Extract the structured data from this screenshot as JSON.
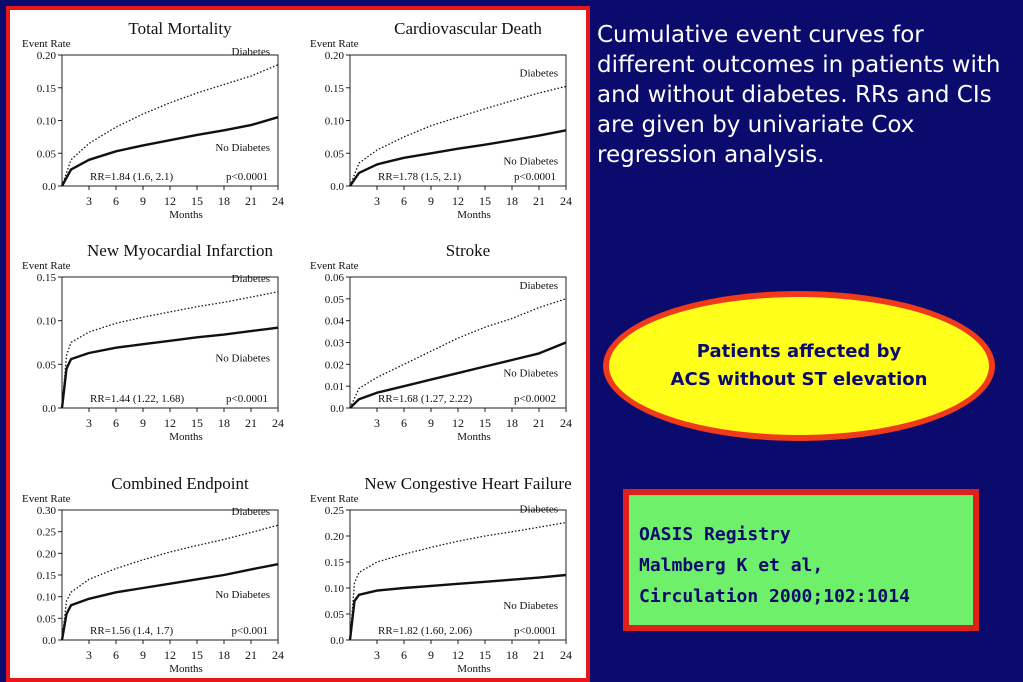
{
  "caption": "Cumulative event curves for different outcomes in patients with and without diabetes. RRs and CIs are given by univariate Cox regression analysis.",
  "callout": {
    "line1": "Patients affected by",
    "line2": "ACS without ST elevation"
  },
  "reference": {
    "line1": "OASIS Registry",
    "line2": "Malmberg K et al,",
    "line3": "Circulation 2000;102:1014"
  },
  "colors": {
    "background": "#0b0b6e",
    "panel_border": "#e8161a",
    "callout_fill": "#ffff1a",
    "callout_border": "#f03a1a",
    "reference_fill": "#6ef06a",
    "reference_border": "#e0201a"
  },
  "chart_data": [
    {
      "type": "line",
      "title": "Total Mortality",
      "ylabel": "Event Rate",
      "xlabel": "Months",
      "x_ticks": [
        3,
        6,
        9,
        12,
        15,
        18,
        21,
        24
      ],
      "y_ticks": [
        "0.0",
        "0.05",
        "0.10",
        "0.15",
        "0.20"
      ],
      "ylim": [
        0,
        0.2
      ],
      "xlim": [
        0,
        24
      ],
      "series": [
        {
          "name": "Diabetes",
          "style": "dotted",
          "x": [
            0,
            1,
            3,
            6,
            9,
            12,
            15,
            18,
            21,
            24
          ],
          "y": [
            0,
            0.04,
            0.065,
            0.09,
            0.11,
            0.127,
            0.142,
            0.155,
            0.168,
            0.185
          ]
        },
        {
          "name": "No Diabetes",
          "style": "solid",
          "x": [
            0,
            1,
            3,
            6,
            9,
            12,
            15,
            18,
            21,
            24
          ],
          "y": [
            0,
            0.025,
            0.04,
            0.053,
            0.062,
            0.07,
            0.078,
            0.085,
            0.093,
            0.105
          ]
        }
      ],
      "annotation": {
        "rr": "RR=1.84 (1.6, 2.1)",
        "p": "p<0.0001"
      }
    },
    {
      "type": "line",
      "title": "Cardiovascular Death",
      "ylabel": "Event Rate",
      "xlabel": "Months",
      "x_ticks": [
        3,
        6,
        9,
        12,
        15,
        18,
        21,
        24
      ],
      "y_ticks": [
        "0.0",
        "0.05",
        "0.10",
        "0.15",
        "0.20"
      ],
      "ylim": [
        0,
        0.2
      ],
      "xlim": [
        0,
        24
      ],
      "series": [
        {
          "name": "Diabetes",
          "style": "dotted",
          "x": [
            0,
            1,
            3,
            6,
            9,
            12,
            15,
            18,
            21,
            24
          ],
          "y": [
            0,
            0.035,
            0.055,
            0.075,
            0.092,
            0.105,
            0.118,
            0.13,
            0.142,
            0.152
          ]
        },
        {
          "name": "No Diabetes",
          "style": "solid",
          "x": [
            0,
            1,
            3,
            6,
            9,
            12,
            15,
            18,
            21,
            24
          ],
          "y": [
            0,
            0.02,
            0.033,
            0.043,
            0.05,
            0.057,
            0.063,
            0.07,
            0.077,
            0.085
          ]
        }
      ],
      "annotation": {
        "rr": "RR=1.78 (1.5, 2.1)",
        "p": "p<0.0001"
      }
    },
    {
      "type": "line",
      "title": "New Myocardial Infarction",
      "ylabel": "Event Rate",
      "xlabel": "Months",
      "x_ticks": [
        3,
        6,
        9,
        12,
        15,
        18,
        21,
        24
      ],
      "y_ticks": [
        "0.0",
        "0.05",
        "0.10",
        "0.15"
      ],
      "ylim": [
        0,
        0.15
      ],
      "xlim": [
        0,
        24
      ],
      "series": [
        {
          "name": "Diabetes",
          "style": "dotted",
          "x": [
            0,
            0.5,
            1,
            3,
            6,
            9,
            12,
            15,
            18,
            21,
            24
          ],
          "y": [
            0,
            0.06,
            0.075,
            0.087,
            0.097,
            0.104,
            0.11,
            0.116,
            0.121,
            0.127,
            0.133
          ]
        },
        {
          "name": "No Diabetes",
          "style": "solid",
          "x": [
            0,
            0.5,
            1,
            3,
            6,
            9,
            12,
            15,
            18,
            21,
            24
          ],
          "y": [
            0,
            0.045,
            0.056,
            0.063,
            0.069,
            0.073,
            0.077,
            0.081,
            0.084,
            0.088,
            0.092
          ]
        }
      ],
      "annotation": {
        "rr": "RR=1.44 (1.22, 1.68)",
        "p": "p<0.0001"
      }
    },
    {
      "type": "line",
      "title": "Stroke",
      "ylabel": "Event Rate",
      "xlabel": "Months",
      "x_ticks": [
        3,
        6,
        9,
        12,
        15,
        18,
        21,
        24
      ],
      "y_ticks": [
        "0.0",
        "0.01",
        "0.02",
        "0.03",
        "0.04",
        "0.05",
        "0.06"
      ],
      "ylim": [
        0,
        0.06
      ],
      "xlim": [
        0,
        24
      ],
      "series": [
        {
          "name": "Diabetes",
          "style": "dotted",
          "x": [
            0,
            1,
            3,
            6,
            9,
            12,
            15,
            18,
            21,
            24
          ],
          "y": [
            0,
            0.009,
            0.014,
            0.02,
            0.026,
            0.032,
            0.037,
            0.041,
            0.046,
            0.05
          ]
        },
        {
          "name": "No Diabetes",
          "style": "solid",
          "x": [
            0,
            1,
            3,
            6,
            9,
            12,
            15,
            18,
            21,
            24
          ],
          "y": [
            0,
            0.004,
            0.007,
            0.01,
            0.013,
            0.016,
            0.019,
            0.022,
            0.025,
            0.03
          ]
        }
      ],
      "annotation": {
        "rr": "RR=1.68 (1.27, 2.22)",
        "p": "p<0.0002"
      }
    },
    {
      "type": "line",
      "title": "Combined Endpoint",
      "ylabel": "Event Rate",
      "xlabel": "Months",
      "x_ticks": [
        3,
        6,
        9,
        12,
        15,
        18,
        21,
        24
      ],
      "y_ticks": [
        "0.0",
        "0.05",
        "0.10",
        "0.15",
        "0.20",
        "0.25",
        "0.30"
      ],
      "ylim": [
        0,
        0.3
      ],
      "xlim": [
        0,
        24
      ],
      "series": [
        {
          "name": "Diabetes",
          "style": "dotted",
          "x": [
            0,
            0.5,
            1,
            3,
            6,
            9,
            12,
            15,
            18,
            21,
            24
          ],
          "y": [
            0,
            0.09,
            0.11,
            0.14,
            0.165,
            0.185,
            0.203,
            0.218,
            0.232,
            0.248,
            0.265
          ]
        },
        {
          "name": "No Diabetes",
          "style": "solid",
          "x": [
            0,
            0.5,
            1,
            3,
            6,
            9,
            12,
            15,
            18,
            21,
            24
          ],
          "y": [
            0,
            0.06,
            0.08,
            0.095,
            0.11,
            0.12,
            0.13,
            0.14,
            0.15,
            0.163,
            0.175
          ]
        }
      ],
      "annotation": {
        "rr": "RR=1.56 (1.4, 1.7)",
        "p": "p<0.001"
      }
    },
    {
      "type": "line",
      "title": "New Congestive Heart Failure",
      "ylabel": "Event Rate",
      "xlabel": "Months",
      "x_ticks": [
        3,
        6,
        9,
        12,
        15,
        18,
        21,
        24
      ],
      "y_ticks": [
        "0.0",
        "0.05",
        "0.10",
        "0.15",
        "0.20",
        "0.25"
      ],
      "ylim": [
        0,
        0.25
      ],
      "xlim": [
        0,
        24
      ],
      "series": [
        {
          "name": "Diabetes",
          "style": "dotted",
          "x": [
            0,
            0.5,
            1,
            3,
            6,
            9,
            12,
            15,
            18,
            21,
            24
          ],
          "y": [
            0,
            0.11,
            0.13,
            0.15,
            0.165,
            0.178,
            0.19,
            0.2,
            0.208,
            0.217,
            0.226
          ]
        },
        {
          "name": "No Diabetes",
          "style": "solid",
          "x": [
            0,
            0.5,
            1,
            3,
            6,
            9,
            12,
            15,
            18,
            21,
            24
          ],
          "y": [
            0,
            0.075,
            0.087,
            0.095,
            0.1,
            0.104,
            0.108,
            0.112,
            0.116,
            0.12,
            0.125
          ]
        }
      ],
      "annotation": {
        "rr": "RR=1.82 (1.60, 2.06)",
        "p": "p<0.0001"
      }
    }
  ]
}
